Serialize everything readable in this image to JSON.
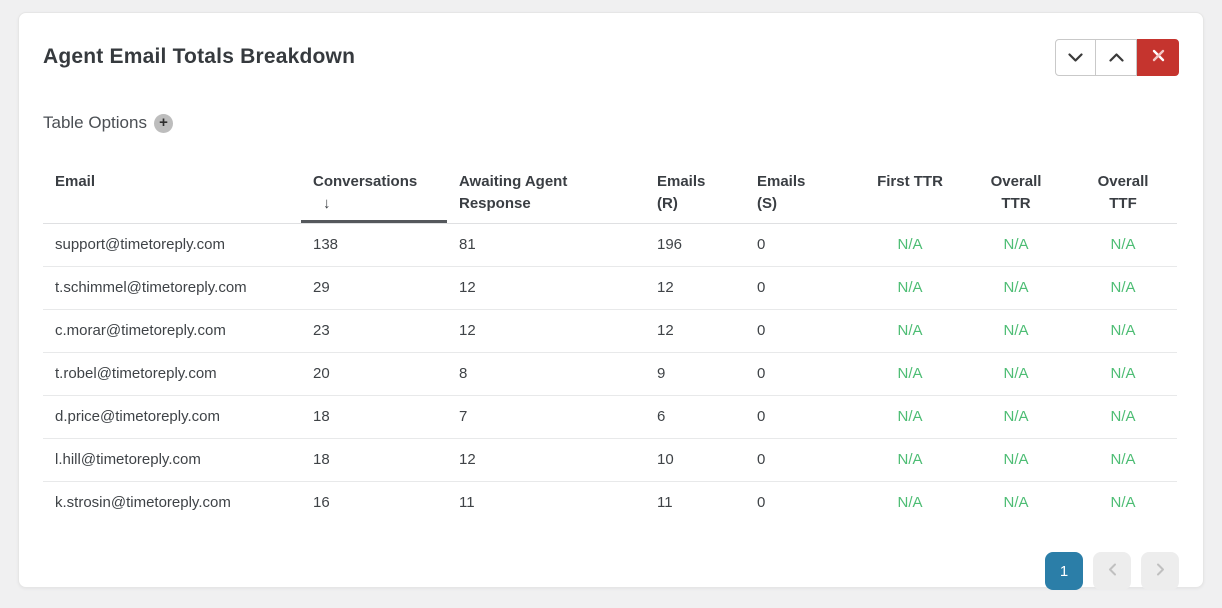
{
  "window": {
    "title": "Agent Email Totals Breakdown"
  },
  "window_controls": {
    "collapse_icon": "chevron-down",
    "expand_icon": "chevron-up",
    "close_icon": "x"
  },
  "table_options": {
    "label": "Table Options",
    "add_icon": "+"
  },
  "table": {
    "sort_arrow": "↓",
    "sorted_column": "Conversations",
    "sort_direction": "desc",
    "columns": [
      {
        "key": "email",
        "label": "Email",
        "align": "left",
        "sorted": false
      },
      {
        "key": "conversations",
        "label": "Conversations",
        "align": "left",
        "sorted": true
      },
      {
        "key": "awaiting_agent_response",
        "label": "Awaiting Agent Response",
        "align": "left",
        "sorted": false
      },
      {
        "key": "emails_r",
        "label": "Emails (R)",
        "align": "left",
        "sorted": false
      },
      {
        "key": "emails_s",
        "label": "Emails (S)",
        "align": "left",
        "sorted": false
      },
      {
        "key": "first_ttr",
        "label": "First TTR",
        "align": "center",
        "sorted": false
      },
      {
        "key": "overall_ttr",
        "label": "Overall TTR",
        "align": "center",
        "sorted": false
      },
      {
        "key": "overall_ttf",
        "label": "Overall TTF",
        "align": "center",
        "sorted": false
      }
    ],
    "rows": [
      [
        "support@timetoreply.com",
        "138",
        "81",
        "196",
        "0",
        "N/A",
        "N/A",
        "N/A"
      ],
      [
        "t.schimmel@timetoreply.com",
        "29",
        "12",
        "12",
        "0",
        "N/A",
        "N/A",
        "N/A"
      ],
      [
        "c.morar@timetoreply.com",
        "23",
        "12",
        "12",
        "0",
        "N/A",
        "N/A",
        "N/A"
      ],
      [
        "t.robel@timetoreply.com",
        "20",
        "8",
        "9",
        "0",
        "N/A",
        "N/A",
        "N/A"
      ],
      [
        "d.price@timetoreply.com",
        "18",
        "7",
        "6",
        "0",
        "N/A",
        "N/A",
        "N/A"
      ],
      [
        "l.hill@timetoreply.com",
        "18",
        "12",
        "10",
        "0",
        "N/A",
        "N/A",
        "N/A"
      ],
      [
        "k.strosin@timetoreply.com",
        "16",
        "11",
        "11",
        "0",
        "N/A",
        "N/A",
        "N/A"
      ]
    ]
  },
  "pagination": {
    "current_page": "1"
  },
  "colors": {
    "na_green": "#4dbd74",
    "close_red": "#c5342e",
    "active_page_blue": "#2b7ea8",
    "sort_underline": "#55585c",
    "page_background": "#f0f0f1"
  }
}
